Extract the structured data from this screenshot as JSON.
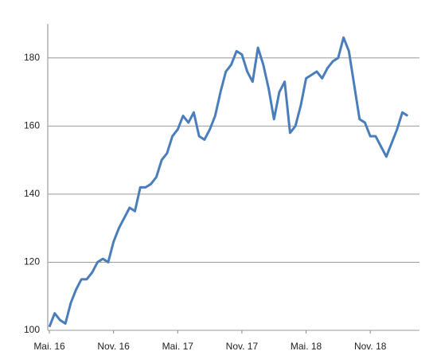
{
  "chart_data": {
    "type": "line",
    "categories": [
      "Mai. 16",
      null,
      null,
      null,
      null,
      null,
      null,
      null,
      null,
      null,
      null,
      null,
      "Nov. 16",
      null,
      null,
      null,
      null,
      null,
      null,
      null,
      null,
      null,
      null,
      null,
      "Mai. 17",
      null,
      null,
      null,
      null,
      null,
      null,
      null,
      null,
      null,
      null,
      null,
      "Nov. 17",
      null,
      null,
      null,
      null,
      null,
      null,
      null,
      null,
      null,
      null,
      null,
      "Mai. 18",
      null,
      null,
      null,
      null,
      null,
      null,
      null,
      null,
      null,
      null,
      null,
      "Nov. 18",
      null,
      null,
      null,
      null,
      null,
      null,
      null
    ],
    "series": [
      {
        "color": "#4a7ebb",
        "values": [
          101,
          105,
          103,
          102,
          108,
          112,
          115,
          115,
          117,
          120,
          121,
          120,
          126,
          130,
          133,
          136,
          135,
          142,
          142,
          143,
          145,
          150,
          152,
          157,
          159,
          163,
          161,
          164,
          157,
          156,
          159,
          163,
          170,
          176,
          178,
          182,
          181,
          176,
          173,
          183,
          178,
          171,
          162,
          170,
          173,
          158,
          160,
          166,
          174,
          175,
          176,
          174,
          177,
          179,
          180,
          186,
          182,
          172,
          162,
          161,
          157,
          157,
          154,
          151,
          155,
          159,
          164,
          163
        ]
      }
    ],
    "ylim": [
      100,
      190
    ],
    "yticks": [
      100,
      120,
      140,
      160,
      180
    ],
    "grid": true
  }
}
